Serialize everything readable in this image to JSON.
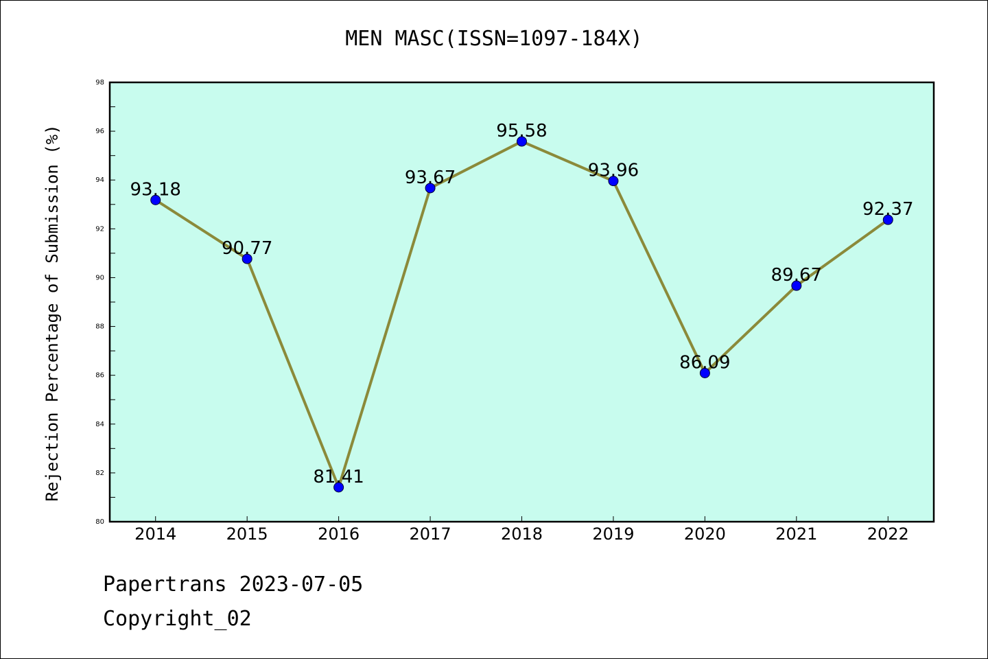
{
  "chart_data": {
    "type": "line",
    "title": "MEN MASC(ISSN=1097-184X)",
    "xlabel": "",
    "ylabel": "Rejection Percentage of Submission (%)",
    "categories": [
      "2014",
      "2015",
      "2016",
      "2017",
      "2018",
      "2019",
      "2020",
      "2021",
      "2022"
    ],
    "values": [
      93.18,
      90.77,
      81.41,
      93.67,
      95.58,
      93.96,
      86.09,
      89.67,
      92.37
    ],
    "data_labels": [
      "93.18",
      "90.77",
      "81.41",
      "93.67",
      "95.58",
      "93.96",
      "86.09",
      "89.67",
      "92.37"
    ],
    "ylim": [
      80,
      98
    ],
    "yticks": [
      "80",
      "82",
      "84",
      "86",
      "88",
      "90",
      "92",
      "94",
      "96",
      "98"
    ],
    "grid": false,
    "legend": "none",
    "colors": {
      "plot_background": "#c8fcee",
      "line": "#8b8a3a",
      "marker": "#0000ff"
    }
  },
  "footer": {
    "line1": "Papertrans 2023-07-05",
    "line2": "Copyright_02"
  }
}
